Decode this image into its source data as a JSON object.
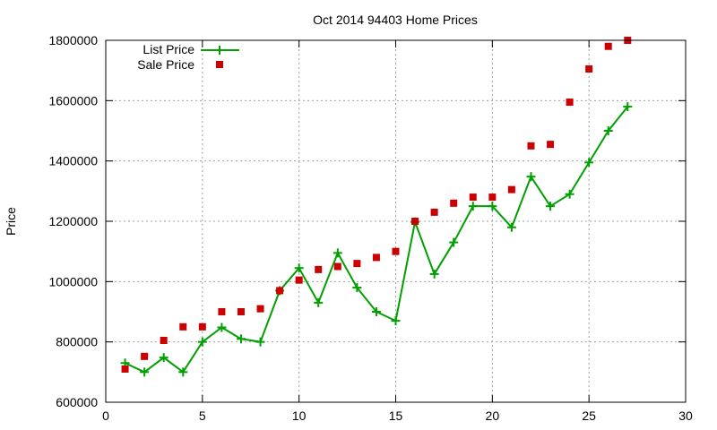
{
  "chart_data": {
    "type": "line",
    "title": "Oct 2014 94403 Home Prices",
    "xlabel": "",
    "ylabel": "Price",
    "xlim": [
      0,
      30
    ],
    "ylim": [
      600000,
      1800000
    ],
    "xticks": [
      0,
      5,
      10,
      15,
      20,
      25,
      30
    ],
    "yticks": [
      600000,
      800000,
      1000000,
      1200000,
      1400000,
      1600000,
      1800000
    ],
    "grid": true,
    "legend_position": "top-left",
    "x": [
      1,
      2,
      3,
      4,
      5,
      6,
      7,
      8,
      9,
      10,
      11,
      12,
      13,
      14,
      15,
      16,
      17,
      18,
      19,
      20,
      21,
      22,
      23,
      24,
      25,
      26,
      27
    ],
    "series": [
      {
        "name": "List Price",
        "style": "line-plus",
        "color": "#00a000",
        "values": [
          730000,
          700000,
          748000,
          700000,
          800000,
          848000,
          810000,
          800000,
          970000,
          1045000,
          930000,
          1095000,
          980000,
          900000,
          870000,
          1198000,
          1025000,
          1130000,
          1250000,
          1250000,
          1180000,
          1348000,
          1250000,
          1290000,
          1395000,
          1500000,
          1580000
        ]
      },
      {
        "name": "Sale Price",
        "style": "points-square",
        "color": "#cc0000",
        "values": [
          710000,
          752000,
          805000,
          850000,
          850000,
          900000,
          900000,
          910000,
          970000,
          1005000,
          1040000,
          1050000,
          1060000,
          1080000,
          1100000,
          1200000,
          1230000,
          1260000,
          1280000,
          1280000,
          1305000,
          1450000,
          1455000,
          1595000,
          1705000,
          1780000,
          1800000
        ]
      }
    ]
  }
}
